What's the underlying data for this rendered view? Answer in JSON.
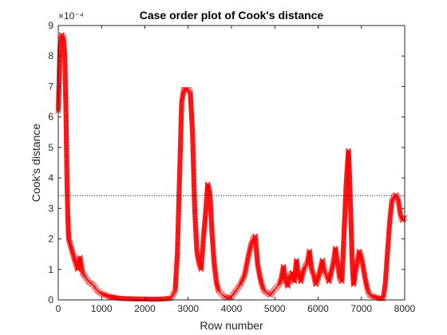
{
  "chart_data": {
    "type": "scatter",
    "title": "Case order plot of Cook's distance",
    "xlabel": "Row number",
    "ylabel": "Cook's distance",
    "y_exponent_label": "×10⁻⁴",
    "xlim": [
      0,
      8000
    ],
    "ylim": [
      0,
      9
    ],
    "xticks": [
      0,
      1000,
      2000,
      3000,
      4000,
      5000,
      6000,
      7000,
      8000
    ],
    "yticks": [
      0,
      1,
      2,
      3,
      4,
      5,
      6,
      7,
      8,
      9
    ],
    "grid": false,
    "marker": "x",
    "marker_color": "#ff0000",
    "threshold_line": {
      "y": 3.42,
      "style": "dotted",
      "color": "#000000"
    },
    "series": [
      {
        "values_units": "1e-4",
        "x": [
          0,
          40,
          80,
          120,
          150,
          180,
          200,
          220,
          240,
          280,
          320,
          380,
          450,
          500,
          560,
          600,
          700,
          800,
          900,
          1000,
          1100,
          1200,
          1300,
          1400,
          1600,
          1800,
          2000,
          2200,
          2400,
          2600,
          2700,
          2750,
          2800,
          2850,
          2900,
          2950,
          3000,
          3050,
          3100,
          3150,
          3200,
          3250,
          3300,
          3350,
          3400,
          3450,
          3500,
          3550,
          3600,
          3650,
          3700,
          3800,
          3900,
          4000,
          4100,
          4200,
          4300,
          4400,
          4450,
          4500,
          4550,
          4600,
          4650,
          4700,
          4750,
          4800,
          4850,
          4900,
          5000,
          5100,
          5150,
          5200,
          5250,
          5300,
          5350,
          5400,
          5450,
          5500,
          5550,
          5600,
          5650,
          5700,
          5750,
          5800,
          5850,
          5900,
          5950,
          6000,
          6050,
          6100,
          6150,
          6200,
          6250,
          6300,
          6350,
          6400,
          6450,
          6500,
          6550,
          6600,
          6650,
          6700,
          6720,
          6750,
          6780,
          6800,
          6820,
          6850,
          6900,
          6950,
          7000,
          7050,
          7100,
          7150,
          7200,
          7300,
          7400,
          7500,
          7550,
          7600,
          7650,
          7700,
          7750,
          7800,
          7850,
          7900,
          7950,
          8000
        ],
        "y": [
          6.2,
          8.3,
          8.7,
          8.6,
          8.0,
          6.0,
          4.0,
          2.8,
          2.0,
          1.8,
          1.6,
          1.3,
          1.0,
          1.4,
          0.9,
          0.8,
          0.6,
          0.5,
          0.3,
          0.2,
          0.15,
          0.1,
          0.08,
          0.05,
          0.04,
          0.03,
          0.03,
          0.02,
          0.03,
          0.05,
          0.3,
          1.5,
          4.0,
          6.5,
          6.9,
          6.9,
          6.9,
          6.8,
          5.5,
          3.0,
          1.6,
          1.2,
          1.0,
          2.0,
          2.8,
          3.8,
          3.5,
          2.2,
          1.2,
          0.6,
          0.3,
          0.15,
          0.05,
          0.1,
          0.3,
          0.5,
          0.8,
          1.5,
          1.8,
          2.0,
          2.1,
          1.2,
          0.8,
          0.5,
          0.3,
          0.25,
          0.2,
          0.15,
          0.35,
          0.5,
          0.7,
          1.1,
          0.6,
          0.45,
          0.8,
          0.9,
          0.6,
          1.3,
          0.8,
          0.6,
          0.9,
          1.1,
          1.2,
          1.6,
          1.0,
          0.8,
          0.5,
          0.7,
          1.0,
          1.3,
          0.9,
          0.8,
          0.6,
          0.9,
          1.2,
          1.7,
          1.2,
          0.7,
          0.6,
          2.2,
          3.8,
          4.9,
          4.3,
          3.0,
          1.6,
          0.9,
          0.5,
          0.8,
          1.2,
          1.6,
          1.4,
          1.0,
          0.6,
          0.3,
          0.15,
          0.1,
          0.05,
          0.04,
          0.5,
          1.5,
          2.5,
          3.2,
          3.4,
          3.45,
          3.3,
          2.8,
          2.6,
          2.7
        ]
      }
    ]
  }
}
